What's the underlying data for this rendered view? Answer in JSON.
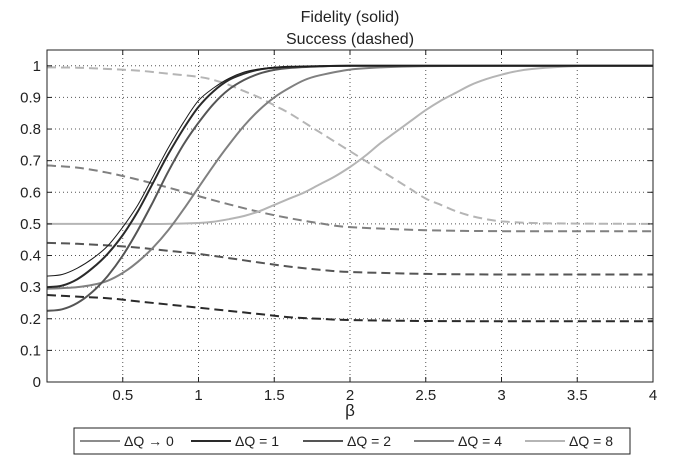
{
  "chart_data": {
    "type": "line",
    "title_lines": [
      "Fidelity (solid)",
      "Success (dashed)"
    ],
    "xlabel": "β",
    "ylabel": "",
    "xlim": [
      0,
      4
    ],
    "ylim": [
      0,
      1.05
    ],
    "x_ticks": [
      0.5,
      1,
      1.5,
      2,
      2.5,
      3,
      3.5,
      4
    ],
    "x_tick_labels": [
      "0.5",
      "1",
      "1.5",
      "2",
      "2.5",
      "3",
      "3.5",
      "4"
    ],
    "y_ticks": [
      0,
      0.1,
      0.2,
      0.3,
      0.4,
      0.5,
      0.6,
      0.7,
      0.8,
      0.9,
      1
    ],
    "y_tick_labels": [
      "0",
      "0.1",
      "0.2",
      "0.3",
      "0.4",
      "0.5",
      "0.6",
      "0.7",
      "0.8",
      "0.9",
      "1"
    ],
    "grid": true,
    "legend_position": "bottom",
    "series": [
      {
        "name": "ΔQ → 0",
        "color": "#1a1a1a",
        "width": 1.0,
        "fidelity": {
          "x": [
            0,
            0.1,
            0.2,
            0.3,
            0.4,
            0.5,
            0.6,
            0.7,
            0.8,
            0.9,
            1.0,
            1.1,
            1.2,
            1.3,
            1.4,
            1.5,
            1.6,
            1.8,
            2.0,
            2.5,
            3,
            3.5,
            4
          ],
          "y": [
            0.335,
            0.34,
            0.36,
            0.39,
            0.43,
            0.49,
            0.56,
            0.65,
            0.74,
            0.82,
            0.89,
            0.93,
            0.96,
            0.98,
            0.99,
            0.995,
            0.997,
            0.999,
            1,
            1,
            1,
            1,
            1
          ]
        },
        "success": null
      },
      {
        "name": "ΔQ = 1",
        "color": "#2a2a2a",
        "width": 2.0,
        "fidelity": {
          "x": [
            0,
            0.1,
            0.2,
            0.3,
            0.4,
            0.5,
            0.6,
            0.7,
            0.8,
            0.9,
            1.0,
            1.1,
            1.2,
            1.3,
            1.4,
            1.5,
            1.6,
            1.8,
            2.0,
            2.5,
            3,
            3.5,
            4
          ],
          "y": [
            0.3,
            0.305,
            0.325,
            0.36,
            0.405,
            0.465,
            0.54,
            0.63,
            0.72,
            0.8,
            0.87,
            0.92,
            0.955,
            0.975,
            0.988,
            0.994,
            0.997,
            0.999,
            1,
            1,
            1,
            1,
            1
          ]
        },
        "success": {
          "x": [
            0,
            0.2,
            0.4,
            0.6,
            0.8,
            1.0,
            1.2,
            1.4,
            1.6,
            1.8,
            2.0,
            2.5,
            3,
            3.5,
            4
          ],
          "y": [
            0.275,
            0.27,
            0.265,
            0.255,
            0.245,
            0.235,
            0.225,
            0.215,
            0.205,
            0.2,
            0.196,
            0.193,
            0.192,
            0.192,
            0.192
          ]
        }
      },
      {
        "name": "ΔQ = 2",
        "color": "#555555",
        "width": 2.0,
        "fidelity": {
          "x": [
            0,
            0.1,
            0.2,
            0.3,
            0.4,
            0.5,
            0.6,
            0.7,
            0.8,
            0.9,
            1.0,
            1.1,
            1.2,
            1.3,
            1.4,
            1.5,
            1.6,
            1.8,
            2.0,
            2.5,
            3,
            3.5,
            4
          ],
          "y": [
            0.225,
            0.23,
            0.25,
            0.285,
            0.335,
            0.4,
            0.48,
            0.57,
            0.665,
            0.75,
            0.82,
            0.88,
            0.925,
            0.955,
            0.975,
            0.987,
            0.993,
            0.998,
            1,
            1,
            1,
            1,
            1
          ]
        },
        "success": {
          "x": [
            0,
            0.2,
            0.4,
            0.6,
            0.8,
            1.0,
            1.2,
            1.4,
            1.6,
            1.8,
            2.0,
            2.5,
            3,
            3.5,
            4
          ],
          "y": [
            0.44,
            0.437,
            0.432,
            0.425,
            0.415,
            0.405,
            0.392,
            0.378,
            0.365,
            0.355,
            0.348,
            0.342,
            0.34,
            0.34,
            0.34
          ]
        }
      },
      {
        "name": "ΔQ = 4",
        "color": "#808080",
        "width": 2.0,
        "fidelity": {
          "x": [
            0,
            0.1,
            0.2,
            0.3,
            0.4,
            0.5,
            0.6,
            0.7,
            0.8,
            0.9,
            1.0,
            1.1,
            1.2,
            1.3,
            1.4,
            1.5,
            1.6,
            1.7,
            1.8,
            2.0,
            2.2,
            2.5,
            3,
            3.5,
            4
          ],
          "y": [
            0.295,
            0.297,
            0.3,
            0.307,
            0.32,
            0.345,
            0.38,
            0.425,
            0.48,
            0.545,
            0.615,
            0.685,
            0.75,
            0.81,
            0.86,
            0.9,
            0.93,
            0.955,
            0.97,
            0.988,
            0.995,
            0.999,
            1,
            1,
            1
          ]
        },
        "success": {
          "x": [
            0,
            0.2,
            0.4,
            0.6,
            0.8,
            1.0,
            1.2,
            1.4,
            1.6,
            1.8,
            2.0,
            2.5,
            3,
            3.5,
            4
          ],
          "y": [
            0.685,
            0.678,
            0.662,
            0.64,
            0.615,
            0.588,
            0.562,
            0.538,
            0.518,
            0.502,
            0.49,
            0.48,
            0.477,
            0.477,
            0.477
          ]
        }
      },
      {
        "name": "ΔQ = 8",
        "color": "#b5b5b5",
        "width": 2.0,
        "fidelity": {
          "x": [
            0,
            0.2,
            0.4,
            0.6,
            0.8,
            1.0,
            1.1,
            1.2,
            1.3,
            1.4,
            1.5,
            1.6,
            1.7,
            1.8,
            1.9,
            2.0,
            2.1,
            2.2,
            2.3,
            2.4,
            2.5,
            2.6,
            2.7,
            2.8,
            2.9,
            3.0,
            3.1,
            3.2,
            3.4,
            3.6,
            4
          ],
          "y": [
            0.5,
            0.5,
            0.5,
            0.5,
            0.5,
            0.503,
            0.507,
            0.515,
            0.525,
            0.54,
            0.56,
            0.58,
            0.6,
            0.625,
            0.65,
            0.68,
            0.715,
            0.755,
            0.79,
            0.825,
            0.86,
            0.89,
            0.915,
            0.94,
            0.958,
            0.972,
            0.983,
            0.99,
            0.997,
            1,
            1
          ]
        },
        "success": {
          "x": [
            0,
            0.2,
            0.4,
            0.6,
            0.8,
            1.0,
            1.1,
            1.2,
            1.3,
            1.4,
            1.5,
            1.6,
            1.7,
            1.8,
            1.9,
            2.0,
            2.1,
            2.2,
            2.3,
            2.4,
            2.5,
            2.6,
            2.7,
            2.8,
            2.9,
            3.0,
            3.2,
            3.5,
            4
          ],
          "y": [
            0.995,
            0.994,
            0.99,
            0.985,
            0.975,
            0.965,
            0.955,
            0.94,
            0.92,
            0.9,
            0.875,
            0.85,
            0.82,
            0.79,
            0.76,
            0.73,
            0.7,
            0.67,
            0.64,
            0.61,
            0.58,
            0.56,
            0.54,
            0.525,
            0.515,
            0.508,
            0.503,
            0.501,
            0.5
          ]
        }
      }
    ]
  }
}
